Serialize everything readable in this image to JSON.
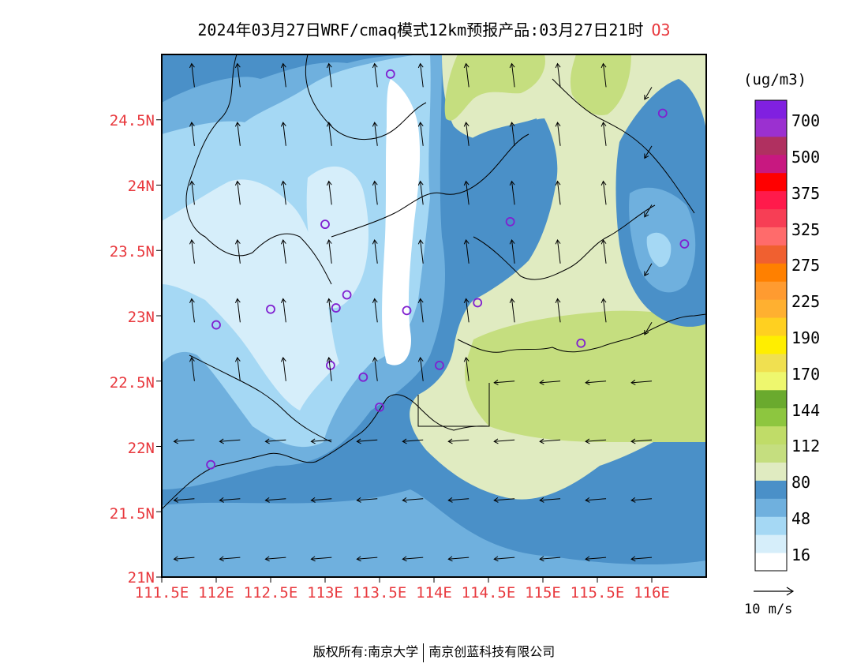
{
  "title": {
    "text": "2024年03月27日WRF/cmaq模式12km预报产品:03月27日21时",
    "pollutant": "O3"
  },
  "map": {
    "lat_labels": [
      "24.5N",
      "24N",
      "23.5N",
      "23N",
      "22.5N",
      "22N",
      "21.5N",
      "21N"
    ],
    "lon_labels": [
      "111.5E",
      "112E",
      "112.5E",
      "113E",
      "113.5E",
      "114E",
      "114.5E",
      "115E",
      "115.5E",
      "116E"
    ],
    "lat_range": [
      21.0,
      25.0
    ],
    "lon_range": [
      111.5,
      116.5
    ],
    "colors": {
      "deep_blue": "#4a90c8",
      "mid_blue": "#6fb0de",
      "light_blue": "#a5d8f4",
      "pale_blue": "#d6eefa",
      "white": "#ffffff",
      "pale_green": "#e0ebc1",
      "light_green": "#c5de7f",
      "station_marker": "#8020d0"
    },
    "stations": [
      {
        "lon": 113.6,
        "lat": 24.85
      },
      {
        "lon": 116.1,
        "lat": 24.55
      },
      {
        "lon": 113.0,
        "lat": 23.7
      },
      {
        "lon": 114.7,
        "lat": 23.72
      },
      {
        "lon": 116.3,
        "lat": 23.55
      },
      {
        "lon": 112.5,
        "lat": 23.05
      },
      {
        "lon": 113.1,
        "lat": 23.06
      },
      {
        "lon": 113.2,
        "lat": 23.16
      },
      {
        "lon": 113.75,
        "lat": 23.04
      },
      {
        "lon": 114.4,
        "lat": 23.1
      },
      {
        "lon": 112.0,
        "lat": 22.93
      },
      {
        "lon": 113.05,
        "lat": 22.62
      },
      {
        "lon": 113.35,
        "lat": 22.53
      },
      {
        "lon": 114.05,
        "lat": 22.62
      },
      {
        "lon": 115.35,
        "lat": 22.79
      },
      {
        "lon": 113.5,
        "lat": 22.3
      },
      {
        "lon": 111.95,
        "lat": 21.86
      }
    ]
  },
  "legend": {
    "unit": "(ug/m3)",
    "labels": [
      "700",
      "500",
      "375",
      "325",
      "275",
      "225",
      "190",
      "170",
      "144",
      "112",
      "80",
      "48",
      "16"
    ],
    "colors": [
      "#ffffff",
      "#d6eefa",
      "#a5d8f4",
      "#6fb0de",
      "#4a90c8",
      "#e0ebc1",
      "#c5de7f",
      "#c0dc68",
      "#8dc63f",
      "#6aaa2e",
      "#eef76e",
      "#f0e050",
      "#ffee00",
      "#ffd020",
      "#ffb030",
      "#ff9b30",
      "#ff8000",
      "#f06030",
      "#ff6b6b",
      "#f73e55",
      "#ff1a4b",
      "#ff0000",
      "#c81880",
      "#b03060",
      "#9b30d0",
      "#8020e0"
    ]
  },
  "wind_reference": {
    "label": "10 m/s"
  },
  "footer": {
    "left": "版权所有:南京大学",
    "right": "南京创蓝科技有限公司"
  }
}
